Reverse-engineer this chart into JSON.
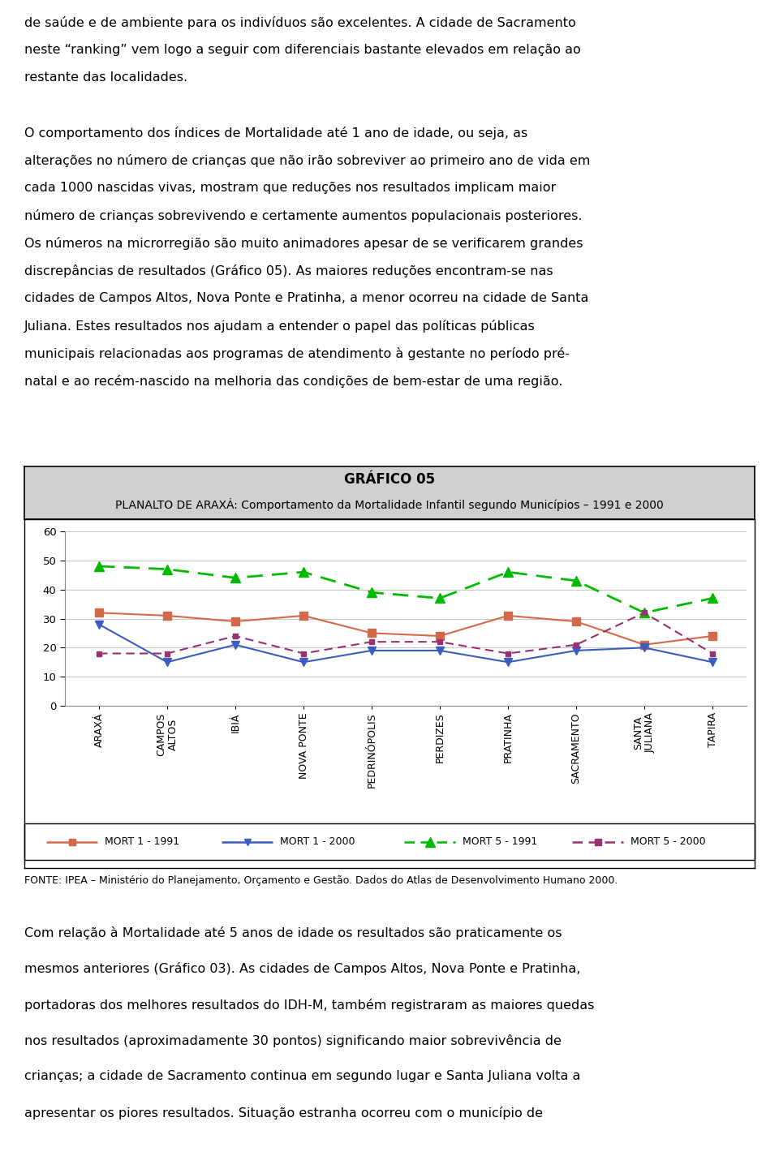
{
  "title_line1": "GRÁFICO 05",
  "title_line2": "PLANALTO DE ARAXÁ: Comportamento da Mortalidade Infantil segundo Municípios – 1991 e 2000",
  "categories": [
    "ARAXÁ",
    "CAMPOS\nALTOS",
    "IBIÁ",
    "NOVA PONTE",
    "PEDRINÓPOLIS",
    "PERDIZES",
    "PRATINHA",
    "SACRAMENTO",
    "SANTA\nJULIANA",
    "TAPIRA"
  ],
  "mort1_1991": [
    32,
    31,
    29,
    31,
    25,
    24,
    31,
    29,
    21,
    24
  ],
  "mort1_2000": [
    28,
    15,
    21,
    15,
    19,
    19,
    15,
    19,
    20,
    15
  ],
  "mort5_1991": [
    48,
    47,
    44,
    46,
    39,
    37,
    46,
    43,
    32,
    37
  ],
  "mort5_2000": [
    18,
    18,
    24,
    18,
    22,
    22,
    18,
    21,
    32,
    18
  ],
  "ylim": [
    0,
    60
  ],
  "yticks": [
    0,
    10,
    20,
    30,
    40,
    50,
    60
  ],
  "color_mort1_1991": "#d4694a",
  "color_mort1_2000": "#3b5bbf",
  "color_mort5_1991": "#00bb00",
  "color_mort5_2000": "#9b3070",
  "bg_color": "#ffffff",
  "title_bg": "#d0d0d0",
  "chart_bg": "#ffffff",
  "grid_color": "#c8c8c8",
  "text_above": [
    "de saúde e de ambiente para os indivíduos são excelentes. A cidade de Sacramento",
    "neste “ranking” vem logo a seguir com diferenciais bastante elevados em relação ao",
    "restante das localidades.",
    "",
    "O comportamento dos índices de Mortalidade até 1 ano de idade, ou seja, as",
    "alterações no número de crianças que não irão sobreviver ao primeiro ano de vida em",
    "cada 1000 nascidas vivas, mostram que reduções nos resultados implicam maior",
    "número de crianças sobrevivendo e certamente aumentos populacionais posteriores.",
    "Os números na microrregião são muito animadores apesar de se verificarem grandes",
    "discrepâncias de resultados (Gráfico 05). As maiores reduções encontram-se nas",
    "cidades de Campos Altos, Nova Ponte e Pratinha, a menor ocorreu na cidade de Santa",
    "Juliana. Estes resultados nos ajudam a entender o papel das políticas públicas",
    "municipais relacionadas aos programas de atendimento à gestante no período pré-",
    "natal e ao recém-nascido na melhoria das condições de bem-estar de uma região."
  ],
  "text_below": [
    "FONTE: IPEA – Ministério do Planejamento, Orçamento e Gestão. Dados do Atlas de Desenvolvimento Humano 2000.",
    "",
    "Com relação à Mortalidade até 5 anos de idade os resultados são praticamente os",
    "mesmos anteriores (Gráfico 03). As cidades de Campos Altos, Nova Ponte e Pratinha,",
    "portadoras dos melhores resultados do IDH-M, também registraram as maiores quedas",
    "nos resultados (aproximadamente 30 pontos) significando maior sobrevivência de",
    "crianças; a cidade de Sacramento continua em segundo lugar e Santa Juliana volta a",
    "apresentar os piores resultados. Situação estranha ocorreu com o município de"
  ],
  "legend_labels": [
    "MORT 1 - 1991",
    "MORT 1 - 2000",
    "MORT 5 - 1991",
    "MORT 5 - 2000"
  ],
  "source_text": "FONTE: IPEA – Ministério do Planejamento, Orçamento e Gestão. Dados do Atlas de Desenvolvimento Humano 2000."
}
